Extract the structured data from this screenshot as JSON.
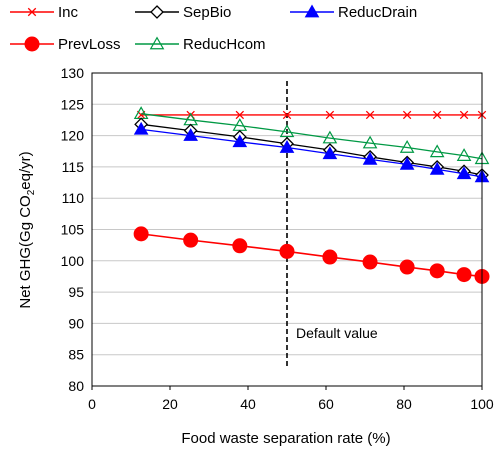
{
  "chart_data": {
    "type": "line",
    "title": "",
    "xlabel": "Food waste separation rate (%)",
    "ylabel_parts": [
      "Net GHG(Gg CO",
      "2",
      "eq/yr)"
    ],
    "xlim": [
      0,
      100
    ],
    "ylim": [
      80,
      130
    ],
    "xticks": [
      0,
      20,
      40,
      60,
      80,
      100
    ],
    "yticks": [
      80,
      85,
      90,
      95,
      100,
      105,
      110,
      115,
      120,
      125,
      130
    ],
    "grid": "horizontal",
    "legend_position": "top",
    "x": [
      12.6,
      25.3,
      37.9,
      50.0,
      61.0,
      71.3,
      80.8,
      88.5,
      95.4,
      100
    ],
    "series": [
      {
        "name": "Inc",
        "color": "#ff0000",
        "marker": "x",
        "marker_fill": "none",
        "values": [
          123.3,
          123.3,
          123.3,
          123.3,
          123.3,
          123.3,
          123.3,
          123.3,
          123.3,
          123.3
        ]
      },
      {
        "name": "SepBio",
        "color": "#000000",
        "marker": "diamond",
        "marker_fill": "#ffffff",
        "values": [
          121.8,
          120.8,
          119.8,
          118.7,
          117.7,
          116.6,
          115.7,
          115.0,
          114.3,
          113.7
        ]
      },
      {
        "name": "ReducDrain",
        "color": "#0000ff",
        "marker": "triangle",
        "marker_fill": "#0000ff",
        "values": [
          121.0,
          120.0,
          119.0,
          118.1,
          117.1,
          116.2,
          115.4,
          114.6,
          113.9,
          113.4
        ]
      },
      {
        "name": "PrevLoss",
        "color": "#ff0000",
        "marker": "circle",
        "marker_fill": "#ff0000",
        "values": [
          104.3,
          103.3,
          102.4,
          101.5,
          100.6,
          99.8,
          99.0,
          98.4,
          97.8,
          97.5
        ]
      },
      {
        "name": "ReducHcom",
        "color": "#009944",
        "marker": "triangle",
        "marker_fill": "none",
        "values": [
          123.5,
          122.5,
          121.6,
          120.6,
          119.6,
          118.8,
          118.1,
          117.4,
          116.8,
          116.3
        ]
      }
    ],
    "annotations": [
      {
        "text": "Default value",
        "x": 50,
        "y": 88.5,
        "vline_x": 50
      }
    ]
  }
}
